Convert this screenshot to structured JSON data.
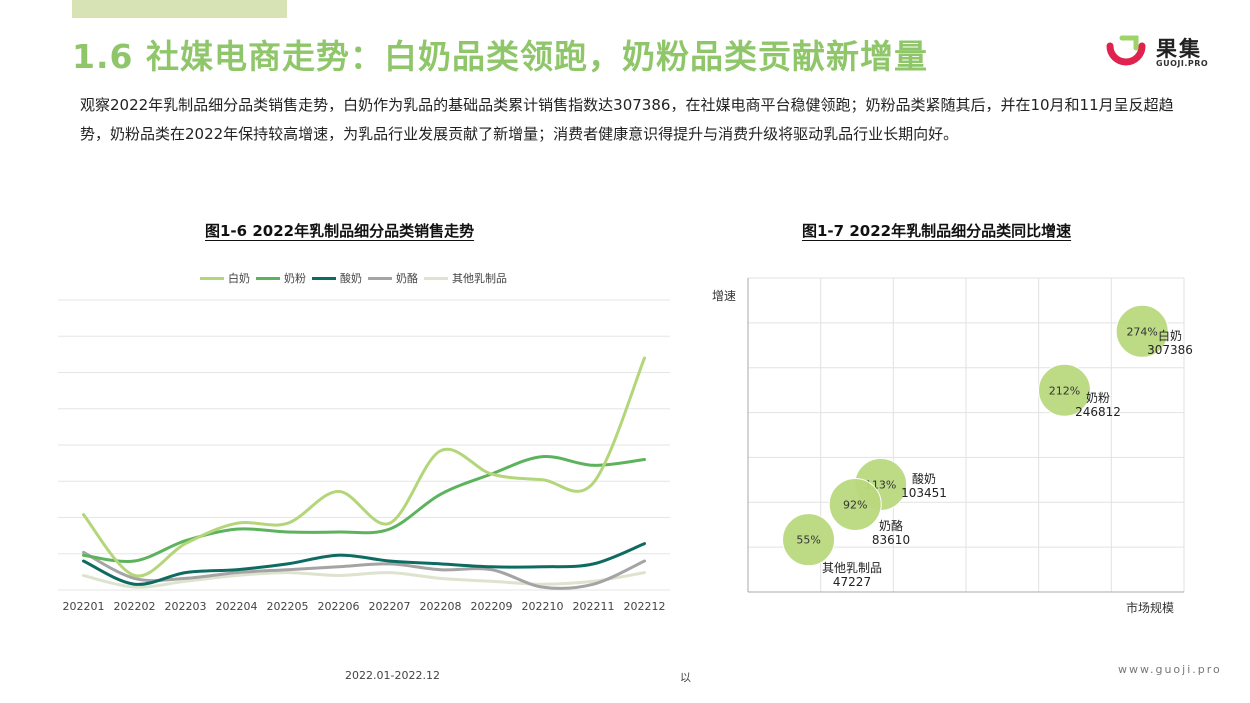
{
  "header": {
    "title": "1.6 社媒电商走势：白奶品类领跑，奶粉品类贡献新增量",
    "logo_text": "果集",
    "logo_sub": "GUOJI.PRO",
    "colors": {
      "title": "#8fc66a",
      "logo_red": "#e0224e",
      "logo_green": "#9ed36a"
    }
  },
  "description": "观察2022年乳制品细分品类销售走势，白奶作为乳品的基础品类累计销售指数达307386，在社媒电商平台稳健领跑；奶粉品类紧随其后，并在10月和11月呈反超趋势，奶粉品类在2022年保持较高增速，为乳品行业发展贡献了新增量；消费者健康意识得提升与消费升级将驱动乳品行业长期向好。",
  "footer": {
    "source_period": "2022.01-2022.12",
    "note": "以",
    "url": "www.guoji.pro"
  },
  "chart_data": [
    {
      "type": "line",
      "title": "图1-6 2022年乳制品细分品类销售走势",
      "categories": [
        "202201",
        "202202",
        "202203",
        "202204",
        "202205",
        "202206",
        "202207",
        "202208",
        "202209",
        "202210",
        "202211",
        "202212"
      ],
      "ylim": [
        0,
        100
      ],
      "grid": true,
      "legend": "top",
      "series": [
        {
          "name": "白奶",
          "color": "#b4d67a",
          "values": [
            26,
            5,
            16,
            23,
            23,
            34,
            23,
            48,
            40,
            38,
            37,
            80
          ]
        },
        {
          "name": "奶粉",
          "color": "#5db35d",
          "values": [
            12,
            10,
            17,
            21,
            20,
            20,
            21,
            33,
            40,
            46,
            43,
            45
          ]
        },
        {
          "name": "酸奶",
          "color": "#0e6b62",
          "values": [
            10,
            2,
            6,
            7,
            9,
            12,
            10,
            9,
            8,
            8,
            9,
            16
          ]
        },
        {
          "name": "奶酪",
          "color": "#a4a4a4",
          "values": [
            13,
            4,
            4,
            6,
            7,
            8,
            9,
            7,
            7,
            1,
            2,
            10
          ]
        },
        {
          "name": "其他乳制品",
          "color": "#dde3cf",
          "values": [
            5,
            1,
            3,
            5,
            6,
            5,
            6,
            4,
            3,
            2,
            3,
            6
          ]
        }
      ]
    },
    {
      "type": "scatter",
      "title": "图1-7 2022年乳制品细分品类同比增速",
      "xlabel": "市场规模",
      "ylabel": "增速",
      "grid": true,
      "bubble_color": "#b9d97e",
      "points": [
        {
          "name": "白奶",
          "value": "307386",
          "growth": "274%",
          "x": 307386,
          "y": 274
        },
        {
          "name": "奶粉",
          "value": "246812",
          "growth": "212%",
          "x": 246812,
          "y": 212
        },
        {
          "name": "酸奶",
          "value": "103451",
          "growth": "113%",
          "x": 103451,
          "y": 113
        },
        {
          "name": "奶酪",
          "value": "83610",
          "growth": "92%",
          "x": 83610,
          "y": 92
        },
        {
          "name": "其他乳制品",
          "value": "47227",
          "growth": "55%",
          "x": 47227,
          "y": 55
        }
      ]
    }
  ]
}
